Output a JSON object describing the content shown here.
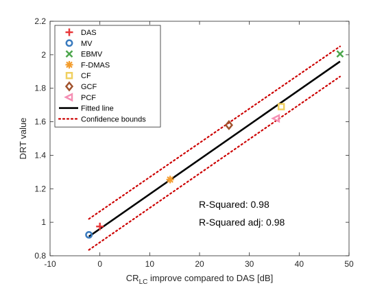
{
  "chart_data": {
    "type": "scatter",
    "xlabel_prefix": "CR",
    "xlabel_sub": "LC",
    "xlabel_suffix": " improve compared to DAS [dB]",
    "ylabel": "DRT value",
    "xlim": [
      -10,
      50
    ],
    "ylim": [
      0.8,
      2.2
    ],
    "xticks": [
      "-10",
      "0",
      "10",
      "20",
      "30",
      "40",
      "50"
    ],
    "yticks": [
      "0.8",
      "1",
      "1.2",
      "1.4",
      "1.6",
      "1.8",
      "2",
      "2.2"
    ],
    "legend_position": "top-left",
    "points": [
      {
        "name": "DAS",
        "x": 0,
        "y": 0.975,
        "marker": "plus",
        "color": "#e8383a"
      },
      {
        "name": "MV",
        "x": -2.2,
        "y": 0.925,
        "marker": "circle",
        "color": "#3a7bbf"
      },
      {
        "name": "EBMV",
        "x": 48.2,
        "y": 2.005,
        "marker": "x",
        "color": "#4ca64c"
      },
      {
        "name": "F-DMAS",
        "x": 14.1,
        "y": 1.255,
        "marker": "asterisk",
        "color": "#f39c2c"
      },
      {
        "name": "CF",
        "x": 36.4,
        "y": 1.69,
        "marker": "square",
        "color": "#f0d060"
      },
      {
        "name": "GCF",
        "x": 25.9,
        "y": 1.58,
        "marker": "diamond",
        "color": "#a0522d"
      },
      {
        "name": "PCF",
        "x": 35.4,
        "y": 1.62,
        "marker": "triangle-left",
        "color": "#f58fb4"
      }
    ],
    "fitted_line": {
      "name": "Fitted line",
      "color": "#000000",
      "x": [
        -2.2,
        48.2
      ],
      "y": [
        0.915,
        1.96
      ]
    },
    "confidence_bounds": {
      "name": "Confidence bounds",
      "color": "#cc0000",
      "upper": {
        "x": [
          -2.2,
          48.2
        ],
        "y": [
          1.02,
          2.05
        ]
      },
      "lower": {
        "x": [
          -2.2,
          48.2
        ],
        "y": [
          0.835,
          1.87
        ]
      }
    },
    "annotations": [
      "R-Squared: 0.98",
      "R-Squared adj: 0.98"
    ]
  }
}
